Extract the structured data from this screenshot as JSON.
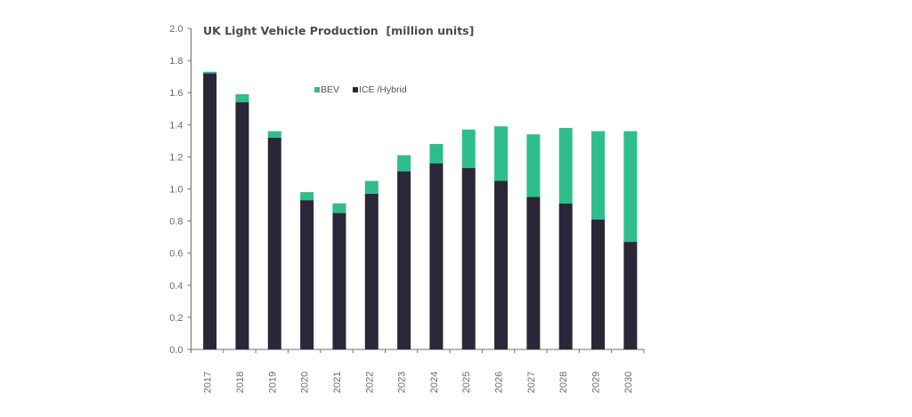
{
  "chart_data": {
    "type": "bar",
    "stacked": true,
    "title": "UK Light Vehicle Production  [million units]",
    "xlabel": "",
    "ylabel": "",
    "ylim": [
      0,
      2.0
    ],
    "yticks": [
      "0.0",
      "0.2",
      "0.4",
      "0.6",
      "0.8",
      "1.0",
      "1.2",
      "1.4",
      "1.6",
      "1.8",
      "2.0"
    ],
    "grid": false,
    "legend_position": "top-center",
    "categories": [
      "2017",
      "2018",
      "2019",
      "2020",
      "2021",
      "2022",
      "2023",
      "2024",
      "2025",
      "2026",
      "2027",
      "2028",
      "2029",
      "2030"
    ],
    "series": [
      {
        "name": "ICE /Hybrid",
        "color": "#2b2738",
        "values": [
          1.72,
          1.54,
          1.32,
          0.93,
          0.85,
          0.97,
          1.11,
          1.16,
          1.13,
          1.05,
          0.95,
          0.91,
          0.81,
          0.67
        ]
      },
      {
        "name": "BEV",
        "color": "#2dbe8b",
        "values": [
          0.01,
          0.05,
          0.04,
          0.05,
          0.06,
          0.08,
          0.1,
          0.12,
          0.24,
          0.34,
          0.39,
          0.47,
          0.55,
          0.69
        ]
      }
    ],
    "legend": [
      {
        "label": "BEV",
        "color": "#2dbe8b"
      },
      {
        "label": "ICE /Hybrid",
        "color": "#2b2738"
      }
    ]
  }
}
